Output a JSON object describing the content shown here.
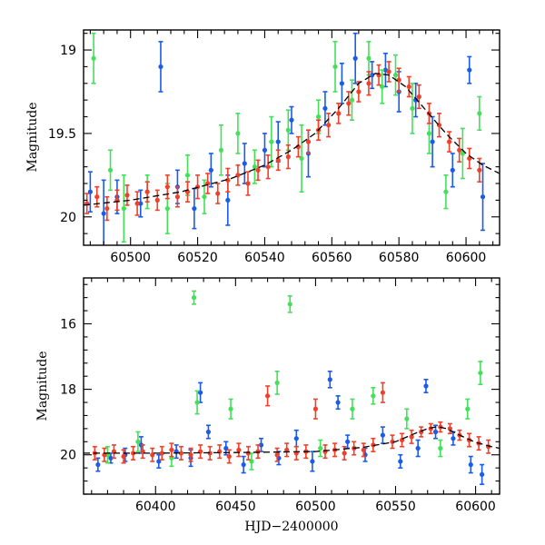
{
  "chart_data": [
    {
      "panel": "top",
      "type": "scatter",
      "title": "",
      "xlabel": "",
      "ylabel": "Magnitude",
      "xlim": [
        60486,
        60610
      ],
      "ylim": [
        20.17,
        18.88
      ],
      "y_inverted": true,
      "xticks": [
        60500,
        60520,
        60540,
        60560,
        60580,
        60600
      ],
      "xtick_labels": [
        "60500",
        "60520",
        "60540",
        "60560",
        "60580",
        "60600"
      ],
      "yticks": [
        19,
        19.5,
        20
      ],
      "ytick_labels": [
        "19",
        "19.5",
        "20"
      ],
      "grid": false,
      "legend": "none",
      "colors": {
        "blue": "#1a5be8",
        "green": "#44e05a",
        "red": "#f0402a",
        "model": "#000000"
      },
      "model_curve": {
        "style": "dashed",
        "x": [
          60486,
          60500,
          60515,
          60530,
          60540,
          60548,
          60555,
          60562,
          60568,
          60573,
          60577,
          60582,
          60588,
          60594,
          60600,
          60605,
          60610
        ],
        "y": [
          19.93,
          19.9,
          19.85,
          19.77,
          19.69,
          19.6,
          19.5,
          19.35,
          19.2,
          19.14,
          19.15,
          19.22,
          19.36,
          19.5,
          19.62,
          19.69,
          19.74
        ]
      },
      "series": [
        {
          "color": "blue",
          "x": [
            60488,
            60492,
            60496,
            60503,
            60509,
            60514,
            60519,
            60524,
            60529,
            60534,
            60540,
            60544,
            60548,
            60553,
            60558,
            60563,
            60567,
            60572,
            60576,
            60580,
            60585,
            60590,
            60596,
            60601,
            60605
          ],
          "y": [
            19.85,
            19.98,
            19.88,
            19.92,
            19.1,
            19.82,
            19.95,
            19.72,
            19.9,
            19.68,
            19.6,
            19.55,
            19.42,
            19.62,
            19.35,
            19.2,
            19.05,
            19.15,
            19.12,
            19.25,
            19.3,
            19.55,
            19.72,
            19.12,
            19.88
          ],
          "err": [
            0.12,
            0.2,
            0.1,
            0.08,
            0.15,
            0.1,
            0.12,
            0.1,
            0.15,
            0.12,
            0.1,
            0.12,
            0.08,
            0.14,
            0.1,
            0.12,
            0.15,
            0.08,
            0.1,
            0.12,
            0.1,
            0.15,
            0.1,
            0.08,
            0.2
          ]
        },
        {
          "color": "green",
          "x": [
            60489,
            60494,
            60498,
            60505,
            60511,
            60517,
            60522,
            60527,
            60532,
            60537,
            60542,
            60547,
            60551,
            60556,
            60561,
            60566,
            60571,
            60575,
            60579,
            60584,
            60589,
            60594,
            60599,
            60604
          ],
          "y": [
            19.05,
            19.72,
            19.95,
            19.85,
            19.95,
            19.75,
            19.88,
            19.6,
            19.5,
            19.7,
            19.55,
            19.48,
            19.65,
            19.4,
            19.1,
            19.3,
            19.05,
            19.22,
            19.15,
            19.35,
            19.5,
            19.85,
            19.62,
            19.38
          ],
          "err": [
            0.15,
            0.12,
            0.2,
            0.1,
            0.15,
            0.12,
            0.1,
            0.15,
            0.12,
            0.1,
            0.15,
            0.12,
            0.2,
            0.1,
            0.15,
            0.12,
            0.1,
            0.1,
            0.12,
            0.15,
            0.12,
            0.1,
            0.15,
            0.1
          ]
        },
        {
          "color": "red",
          "x": [
            60487,
            60490,
            60493,
            60496,
            60499,
            60502,
            60505,
            60508,
            60511,
            60514,
            60517,
            60520,
            60523,
            60526,
            60529,
            60532,
            60535,
            60538,
            60541,
            60544,
            60547,
            60550,
            60553,
            60556,
            60559,
            60562,
            60565,
            60568,
            60571,
            60574,
            60577,
            60580,
            60583,
            60586,
            60589,
            60592,
            60595,
            60598,
            60601,
            60604
          ],
          "y": [
            19.92,
            19.88,
            19.95,
            19.9,
            19.87,
            19.92,
            19.85,
            19.9,
            19.82,
            19.88,
            19.85,
            19.82,
            19.8,
            19.86,
            19.78,
            19.75,
            19.8,
            19.72,
            19.7,
            19.66,
            19.64,
            19.58,
            19.55,
            19.48,
            19.45,
            19.38,
            19.32,
            19.25,
            19.2,
            19.15,
            19.13,
            19.18,
            19.22,
            19.28,
            19.38,
            19.45,
            19.55,
            19.6,
            19.65,
            19.72
          ],
          "err": [
            0.06,
            0.06,
            0.07,
            0.06,
            0.06,
            0.07,
            0.06,
            0.06,
            0.07,
            0.06,
            0.06,
            0.07,
            0.06,
            0.06,
            0.07,
            0.06,
            0.07,
            0.06,
            0.07,
            0.06,
            0.07,
            0.06,
            0.07,
            0.06,
            0.07,
            0.06,
            0.07,
            0.06,
            0.07,
            0.06,
            0.06,
            0.07,
            0.06,
            0.07,
            0.06,
            0.07,
            0.06,
            0.07,
            0.06,
            0.07
          ]
        }
      ]
    },
    {
      "panel": "bottom",
      "type": "scatter",
      "title": "",
      "xlabel": "HJD−2400000",
      "ylabel": "Magnitude",
      "xlim": [
        60355,
        60615
      ],
      "ylim": [
        21.2,
        14.6
      ],
      "y_inverted": true,
      "xticks": [
        60400,
        60450,
        60500,
        60550,
        60600
      ],
      "xtick_labels": [
        "60400",
        "60450",
        "60500",
        "60550",
        "60600"
      ],
      "yticks": [
        16,
        18,
        20
      ],
      "ytick_labels": [
        "16",
        "18",
        "20"
      ],
      "grid": false,
      "legend": "none",
      "colors": {
        "blue": "#1a5be8",
        "green": "#44e05a",
        "red": "#f0402a",
        "model": "#000000"
      },
      "model_curve": {
        "style": "dashed",
        "x": [
          60355,
          60400,
          60450,
          60500,
          60530,
          60550,
          60562,
          60570,
          60576,
          60582,
          60590,
          60600,
          60610,
          60615
        ],
        "y": [
          19.95,
          19.95,
          19.93,
          19.9,
          19.77,
          19.6,
          19.35,
          19.2,
          19.14,
          19.2,
          19.4,
          19.62,
          19.75,
          19.8
        ]
      },
      "series": [
        {
          "color": "blue",
          "x": [
            60364,
            60372,
            60381,
            60391,
            60402,
            60413,
            60422,
            60428,
            60433,
            60444,
            60455,
            60466,
            60477,
            60488,
            60498,
            60509,
            60514,
            60520,
            60531,
            60542,
            60553,
            60564,
            60569,
            60575,
            60586,
            60597,
            60604
          ],
          "y": [
            20.3,
            20.1,
            20.0,
            19.7,
            20.2,
            19.9,
            20.1,
            18.1,
            19.3,
            19.8,
            20.3,
            19.7,
            20.1,
            19.5,
            20.2,
            17.7,
            18.4,
            19.6,
            20.0,
            19.4,
            20.2,
            19.8,
            17.9,
            19.3,
            19.5,
            20.3,
            20.6
          ],
          "err": [
            0.2,
            0.15,
            0.2,
            0.25,
            0.2,
            0.2,
            0.25,
            0.3,
            0.2,
            0.2,
            0.25,
            0.2,
            0.2,
            0.25,
            0.3,
            0.25,
            0.2,
            0.2,
            0.2,
            0.25,
            0.2,
            0.25,
            0.2,
            0.2,
            0.2,
            0.25,
            0.3
          ]
        },
        {
          "color": "green",
          "x": [
            60370,
            60389,
            60410,
            60424,
            60426,
            60447,
            60460,
            60476,
            60484,
            60503,
            60523,
            60536,
            60557,
            60578,
            60595,
            60603
          ],
          "y": [
            20.0,
            19.6,
            20.1,
            15.2,
            18.4,
            18.6,
            20.2,
            17.8,
            15.4,
            19.8,
            18.6,
            18.2,
            18.9,
            19.8,
            18.6,
            17.5
          ],
          "err": [
            0.25,
            0.3,
            0.25,
            0.2,
            0.35,
            0.3,
            0.25,
            0.35,
            0.25,
            0.25,
            0.3,
            0.25,
            0.3,
            0.25,
            0.3,
            0.35
          ]
        },
        {
          "color": "red",
          "x": [
            60362,
            60368,
            60374,
            60380,
            60386,
            60392,
            60398,
            60404,
            60410,
            60416,
            60422,
            60428,
            60434,
            60440,
            60446,
            60452,
            60458,
            60464,
            60470,
            60476,
            60482,
            60488,
            60494,
            60500,
            60506,
            60512,
            60518,
            60524,
            60530,
            60536,
            60542,
            60548,
            60554,
            60560,
            60566,
            60572,
            60578,
            60584,
            60590,
            60596,
            60602,
            60608
          ],
          "y": [
            19.95,
            20.0,
            19.9,
            20.05,
            19.95,
            19.9,
            20.0,
            19.95,
            19.85,
            19.95,
            20.0,
            19.9,
            19.95,
            19.9,
            20.05,
            19.85,
            19.95,
            19.9,
            18.2,
            20.0,
            19.85,
            19.95,
            19.9,
            18.6,
            19.9,
            19.85,
            19.95,
            19.8,
            19.85,
            19.7,
            18.1,
            19.6,
            19.55,
            19.45,
            19.3,
            19.2,
            19.15,
            19.2,
            19.4,
            19.55,
            19.65,
            19.75
          ],
          "err": [
            0.2,
            0.2,
            0.2,
            0.2,
            0.2,
            0.2,
            0.2,
            0.2,
            0.2,
            0.2,
            0.2,
            0.2,
            0.2,
            0.2,
            0.2,
            0.2,
            0.2,
            0.2,
            0.3,
            0.2,
            0.2,
            0.2,
            0.2,
            0.3,
            0.2,
            0.2,
            0.2,
            0.2,
            0.2,
            0.2,
            0.3,
            0.2,
            0.2,
            0.2,
            0.15,
            0.15,
            0.15,
            0.15,
            0.15,
            0.2,
            0.2,
            0.2
          ]
        }
      ]
    }
  ]
}
